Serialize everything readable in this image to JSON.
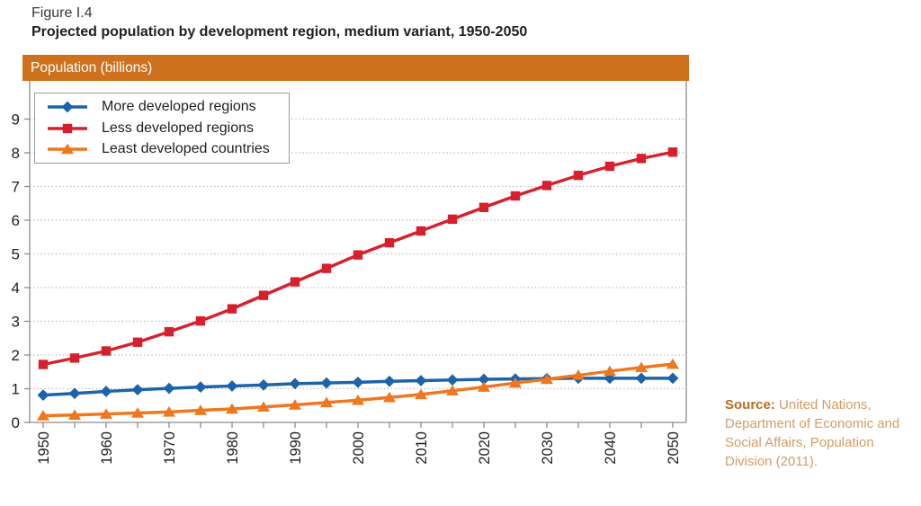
{
  "figure": {
    "label": "Figure I.4",
    "title": "Projected population by development region, medium variant, 1950-2050"
  },
  "panel": {
    "header": "Population (billions)"
  },
  "source": {
    "label": "Source:",
    "text": " United Nations, Department of Economic and Social Affairs, Population Division (2011)."
  },
  "colors": {
    "header_bar": "#CE711D",
    "grid": "#BDBDBD",
    "axis": "#8C8C8C",
    "text": "#232021",
    "source_label": "#BA6D22",
    "source_text": "#D59C63"
  },
  "chart_data": {
    "type": "line",
    "title": "Projected population by development region, medium variant, 1950-2050",
    "ylabel": "Population (billions)",
    "xlabel": "",
    "ylim": [
      0,
      9.6
    ],
    "xlim": [
      1948,
      2052
    ],
    "y_ticks": [
      0,
      1,
      2,
      3,
      4,
      5,
      6,
      7,
      8,
      9
    ],
    "x": [
      1950,
      1955,
      1960,
      1965,
      1970,
      1975,
      1980,
      1985,
      1990,
      1995,
      2000,
      2005,
      2010,
      2015,
      2020,
      2025,
      2030,
      2035,
      2040,
      2045,
      2050
    ],
    "x_tick_labels": [
      1950,
      1960,
      1970,
      1980,
      1990,
      2000,
      2010,
      2020,
      2030,
      2040,
      2050
    ],
    "grid": "horizontal-dotted",
    "legend_position": "top-left",
    "series": [
      {
        "name": "More developed regions",
        "marker": "diamond",
        "color": "#1C63A9",
        "values": [
          0.81,
          0.86,
          0.92,
          0.97,
          1.01,
          1.05,
          1.08,
          1.11,
          1.15,
          1.17,
          1.19,
          1.22,
          1.24,
          1.26,
          1.28,
          1.29,
          1.3,
          1.31,
          1.31,
          1.31,
          1.31
        ]
      },
      {
        "name": "Less developed regions",
        "marker": "square",
        "color": "#D6202D",
        "values": [
          1.72,
          1.91,
          2.12,
          2.38,
          2.69,
          3.01,
          3.37,
          3.77,
          4.17,
          4.57,
          4.97,
          5.33,
          5.68,
          6.03,
          6.38,
          6.72,
          7.03,
          7.33,
          7.6,
          7.83,
          8.02
        ]
      },
      {
        "name": "Least developed countries",
        "marker": "triangle",
        "color": "#F0761F",
        "values": [
          0.2,
          0.22,
          0.25,
          0.28,
          0.31,
          0.36,
          0.4,
          0.46,
          0.52,
          0.59,
          0.66,
          0.74,
          0.83,
          0.94,
          1.05,
          1.17,
          1.28,
          1.4,
          1.52,
          1.63,
          1.73
        ]
      }
    ]
  }
}
